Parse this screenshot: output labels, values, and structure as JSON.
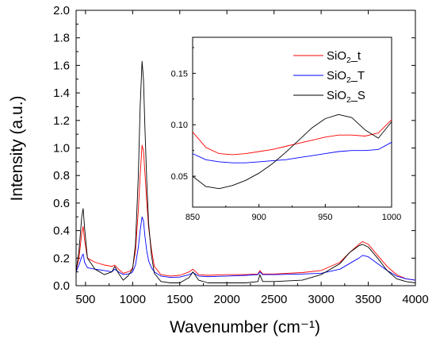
{
  "chart_data": [
    {
      "type": "line",
      "xlabel": "Wavenumber (cm⁻¹)",
      "ylabel": "Intensity (a.u.)",
      "xlim": [
        400,
        4000
      ],
      "ylim": [
        0,
        2.0
      ],
      "xticks": [
        "500",
        "1000",
        "1500",
        "2000",
        "2500",
        "3000",
        "3500",
        "4000"
      ],
      "yticks": [
        "0.0",
        "0.2",
        "0.4",
        "0.6",
        "0.8",
        "1.0",
        "1.2",
        "1.4",
        "1.6",
        "1.8",
        "2.0"
      ],
      "grid": false,
      "series": [
        {
          "key": "t",
          "color": "#ff0000",
          "x": [
            400,
            430,
            460,
            475,
            490,
            520,
            600,
            700,
            780,
            810,
            850,
            900,
            950,
            980,
            1000,
            1030,
            1060,
            1080,
            1100,
            1115,
            1130,
            1150,
            1170,
            1200,
            1230,
            1300,
            1400,
            1500,
            1600,
            1640,
            1700,
            1800,
            2000,
            2200,
            2330,
            2350,
            2380,
            2500,
            2800,
            3000,
            3200,
            3300,
            3400,
            3440,
            3500,
            3600,
            3700,
            3800,
            3900,
            4000
          ],
          "y": [
            0.11,
            0.2,
            0.38,
            0.43,
            0.33,
            0.2,
            0.17,
            0.15,
            0.14,
            0.15,
            0.12,
            0.09,
            0.1,
            0.11,
            0.13,
            0.25,
            0.55,
            0.8,
            1.02,
            0.98,
            0.82,
            0.6,
            0.42,
            0.26,
            0.14,
            0.08,
            0.07,
            0.075,
            0.1,
            0.12,
            0.08,
            0.075,
            0.08,
            0.08,
            0.085,
            0.11,
            0.085,
            0.085,
            0.095,
            0.11,
            0.17,
            0.24,
            0.3,
            0.32,
            0.3,
            0.22,
            0.14,
            0.08,
            0.05,
            0.04
          ]
        },
        {
          "key": "T",
          "color": "#0000ff",
          "x": [
            400,
            430,
            460,
            475,
            490,
            520,
            600,
            700,
            780,
            810,
            850,
            900,
            950,
            980,
            1000,
            1030,
            1060,
            1080,
            1100,
            1115,
            1130,
            1150,
            1170,
            1200,
            1230,
            1300,
            1400,
            1500,
            1600,
            1640,
            1700,
            1800,
            2000,
            2200,
            2330,
            2350,
            2380,
            2500,
            2800,
            3000,
            3200,
            3300,
            3400,
            3440,
            3500,
            3600,
            3700,
            3800,
            3900,
            4000
          ],
          "y": [
            0.1,
            0.15,
            0.21,
            0.23,
            0.17,
            0.13,
            0.12,
            0.11,
            0.1,
            0.12,
            0.1,
            0.08,
            0.085,
            0.09,
            0.1,
            0.15,
            0.28,
            0.4,
            0.5,
            0.47,
            0.36,
            0.25,
            0.18,
            0.13,
            0.1,
            0.07,
            0.06,
            0.062,
            0.08,
            0.095,
            0.07,
            0.065,
            0.07,
            0.075,
            0.08,
            0.1,
            0.08,
            0.08,
            0.085,
            0.09,
            0.12,
            0.16,
            0.2,
            0.22,
            0.21,
            0.16,
            0.11,
            0.07,
            0.05,
            0.04
          ]
        },
        {
          "key": "S",
          "color": "#000000",
          "x": [
            400,
            430,
            460,
            475,
            490,
            520,
            600,
            700,
            780,
            810,
            850,
            900,
            950,
            980,
            1000,
            1030,
            1060,
            1080,
            1100,
            1115,
            1130,
            1150,
            1170,
            1200,
            1230,
            1300,
            1400,
            1500,
            1600,
            1640,
            1700,
            1800,
            2000,
            2200,
            2330,
            2350,
            2380,
            2500,
            2800,
            3000,
            3200,
            3300,
            3400,
            3440,
            3500,
            3600,
            3700,
            3800,
            3900,
            4000
          ],
          "y": [
            0.1,
            0.25,
            0.5,
            0.56,
            0.42,
            0.2,
            0.12,
            0.08,
            0.1,
            0.14,
            0.09,
            0.04,
            0.07,
            0.1,
            0.12,
            0.3,
            0.8,
            1.3,
            1.63,
            1.5,
            1.15,
            0.75,
            0.45,
            0.22,
            0.09,
            0.03,
            0.02,
            0.02,
            0.06,
            0.1,
            0.04,
            0.02,
            0.02,
            0.02,
            0.03,
            0.08,
            0.03,
            0.03,
            0.04,
            0.08,
            0.16,
            0.24,
            0.29,
            0.3,
            0.28,
            0.2,
            0.11,
            0.05,
            0.03,
            0.02
          ]
        }
      ]
    },
    {
      "type": "line",
      "xlim": [
        850,
        1000
      ],
      "ylim": [
        0.02,
        0.185
      ],
      "xticks": [
        "850",
        "900",
        "950",
        "1000"
      ],
      "yticks": [
        "0.05",
        "0.10",
        "0.15"
      ],
      "grid": false,
      "legend_position": "top-right",
      "legend": [
        {
          "key": "t",
          "prefix": "SiO",
          "sub": "2",
          "suffix": "_t"
        },
        {
          "key": "T",
          "prefix": "SiO",
          "sub": "2",
          "suffix": "_T"
        },
        {
          "key": "S",
          "prefix": "SiO",
          "sub": "2",
          "suffix": "_S"
        }
      ],
      "series": [
        {
          "key": "t",
          "color": "#ff0000",
          "x": [
            850,
            860,
            870,
            880,
            890,
            900,
            910,
            920,
            930,
            940,
            950,
            960,
            970,
            980,
            990,
            1000
          ],
          "y": [
            0.093,
            0.078,
            0.072,
            0.071,
            0.072,
            0.074,
            0.076,
            0.079,
            0.082,
            0.085,
            0.088,
            0.09,
            0.09,
            0.089,
            0.092,
            0.105
          ]
        },
        {
          "key": "T",
          "color": "#0000ff",
          "x": [
            850,
            860,
            870,
            880,
            890,
            900,
            910,
            920,
            930,
            940,
            950,
            960,
            970,
            980,
            990,
            1000
          ],
          "y": [
            0.072,
            0.066,
            0.064,
            0.063,
            0.063,
            0.064,
            0.065,
            0.066,
            0.068,
            0.07,
            0.072,
            0.074,
            0.075,
            0.075,
            0.076,
            0.083
          ]
        },
        {
          "key": "S",
          "color": "#000000",
          "x": [
            850,
            860,
            870,
            880,
            890,
            900,
            910,
            920,
            930,
            940,
            950,
            960,
            970,
            980,
            990,
            1000
          ],
          "y": [
            0.05,
            0.04,
            0.038,
            0.041,
            0.046,
            0.053,
            0.062,
            0.073,
            0.085,
            0.097,
            0.106,
            0.11,
            0.107,
            0.095,
            0.087,
            0.103
          ]
        }
      ]
    }
  ]
}
